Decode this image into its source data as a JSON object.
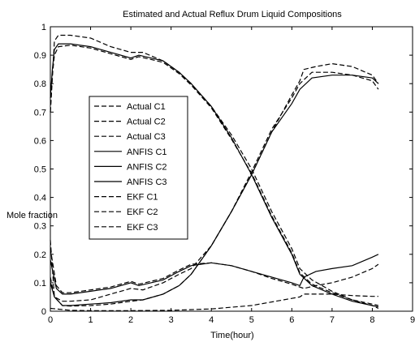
{
  "chart_data": {
    "type": "line",
    "title": "Estimated and Actual Reflux Drum Liquid Compositions",
    "xlabel": "Time(hour)",
    "ylabel": "Mole fraction",
    "xlim": [
      0,
      9
    ],
    "ylim": [
      0,
      1
    ],
    "xticks": [
      0,
      1,
      2,
      3,
      4,
      5,
      6,
      7,
      8,
      9
    ],
    "yticks": [
      0,
      0.1,
      0.2,
      0.3,
      0.4,
      0.5,
      0.6,
      0.7,
      0.8,
      0.9,
      1
    ],
    "grid": false,
    "legend_position": "center-left",
    "series": [
      {
        "name": "Actual C1",
        "dash": "6,3",
        "x": [
          0,
          0.1,
          0.2,
          0.5,
          1,
          1.5,
          2,
          2.3,
          2.8,
          3.2,
          3.5,
          4,
          4.5,
          5,
          5.5,
          6,
          6.2,
          6.5,
          7,
          7.5,
          8,
          8.15
        ],
        "y": [
          0.7,
          0.95,
          0.97,
          0.97,
          0.96,
          0.93,
          0.91,
          0.91,
          0.88,
          0.84,
          0.8,
          0.72,
          0.62,
          0.5,
          0.35,
          0.22,
          0.15,
          0.11,
          0.07,
          0.04,
          0.02,
          0.01
        ]
      },
      {
        "name": "Actual C2",
        "dash": "6,3",
        "x": [
          0,
          0.1,
          0.3,
          0.5,
          1,
          1.5,
          2,
          2.3,
          2.8,
          3.2,
          3.5,
          4,
          4.5,
          5,
          5.5,
          6,
          6.2,
          6.3,
          6.6,
          7,
          7.5,
          8,
          8.15
        ],
        "y": [
          0.25,
          0.05,
          0.035,
          0.035,
          0.04,
          0.06,
          0.08,
          0.075,
          0.1,
          0.13,
          0.15,
          0.23,
          0.35,
          0.48,
          0.63,
          0.76,
          0.81,
          0.85,
          0.86,
          0.87,
          0.86,
          0.83,
          0.8
        ]
      },
      {
        "name": "Actual C3",
        "dash": "6,3",
        "x": [
          0,
          0.5,
          1,
          2,
          3,
          4,
          5,
          6,
          6.2,
          6.3,
          6.6,
          7,
          7.5,
          8,
          8.15
        ],
        "y": [
          0.01,
          0.003,
          0.002,
          0.002,
          0.003,
          0.008,
          0.02,
          0.045,
          0.05,
          0.06,
          0.06,
          0.06,
          0.055,
          0.052,
          0.052
        ]
      },
      {
        "name": "ANFIS C1",
        "dash": "",
        "x": [
          0,
          0.05,
          0.1,
          0.2,
          0.5,
          1,
          1.5,
          2,
          2.2,
          2.8,
          3.2,
          3.5,
          4,
          4.5,
          5,
          5.5,
          6,
          6.2,
          6.5,
          7,
          7.5,
          8,
          8.15
        ],
        "y": [
          0.75,
          0.85,
          0.92,
          0.94,
          0.94,
          0.93,
          0.91,
          0.89,
          0.9,
          0.88,
          0.84,
          0.8,
          0.72,
          0.61,
          0.48,
          0.33,
          0.2,
          0.13,
          0.09,
          0.06,
          0.035,
          0.02,
          0.015
        ]
      },
      {
        "name": "ANFIS C2",
        "dash": "",
        "x": [
          0,
          0.1,
          0.3,
          0.5,
          1,
          1.5,
          2,
          2.3,
          2.8,
          3.2,
          3.5,
          4,
          4.5,
          5,
          5.5,
          6,
          6.2,
          6.5,
          7,
          7.5,
          8,
          8.15
        ],
        "y": [
          0.1,
          0.05,
          0.02,
          0.02,
          0.025,
          0.03,
          0.04,
          0.04,
          0.06,
          0.09,
          0.13,
          0.23,
          0.35,
          0.48,
          0.63,
          0.73,
          0.78,
          0.82,
          0.83,
          0.83,
          0.82,
          0.8
        ]
      },
      {
        "name": "ANFIS C3",
        "dash": "",
        "x": [
          0,
          0.15,
          0.3,
          0.5,
          1,
          1.5,
          2,
          2.2,
          2.8,
          3.2,
          3.5,
          4,
          4.5,
          5,
          5.5,
          6,
          6.2,
          6.3,
          6.6,
          7,
          7.5,
          8,
          8.15
        ],
        "y": [
          0.18,
          0.08,
          0.06,
          0.06,
          0.07,
          0.08,
          0.1,
          0.09,
          0.11,
          0.14,
          0.16,
          0.17,
          0.16,
          0.14,
          0.12,
          0.1,
          0.09,
          0.12,
          0.14,
          0.15,
          0.16,
          0.19,
          0.2
        ]
      },
      {
        "name": "EKF C1",
        "dash": "6,3",
        "x": [
          0,
          0.05,
          0.1,
          0.2,
          0.5,
          1,
          1.5,
          2,
          2.2,
          2.8,
          3.2,
          3.5,
          4,
          4.5,
          5,
          5.5,
          6,
          6.2,
          6.5,
          7,
          7.5,
          8,
          8.15
        ],
        "y": [
          0.7,
          0.83,
          0.9,
          0.93,
          0.935,
          0.925,
          0.905,
          0.885,
          0.895,
          0.875,
          0.835,
          0.795,
          0.715,
          0.605,
          0.485,
          0.335,
          0.205,
          0.135,
          0.095,
          0.065,
          0.04,
          0.025,
          0.02
        ]
      },
      {
        "name": "EKF C2",
        "dash": "6,3",
        "x": [
          0,
          0.1,
          0.3,
          0.5,
          1,
          1.5,
          2,
          2.3,
          2.8,
          3.2,
          3.5,
          4,
          4.5,
          5,
          5.5,
          6,
          6.2,
          6.5,
          7,
          7.5,
          8,
          8.15
        ],
        "y": [
          0.12,
          0.05,
          0.02,
          0.018,
          0.02,
          0.025,
          0.035,
          0.04,
          0.06,
          0.09,
          0.13,
          0.23,
          0.35,
          0.49,
          0.64,
          0.75,
          0.8,
          0.84,
          0.84,
          0.83,
          0.81,
          0.78
        ]
      },
      {
        "name": "EKF C3",
        "dash": "6,3",
        "x": [
          0,
          0.15,
          0.3,
          0.5,
          1,
          1.5,
          2,
          2.2,
          2.8,
          3.2,
          3.5,
          4,
          4.5,
          5,
          5.5,
          6,
          6.2,
          6.3,
          6.6,
          7,
          7.5,
          8,
          8.15
        ],
        "y": [
          0.22,
          0.09,
          0.065,
          0.065,
          0.075,
          0.085,
          0.105,
          0.095,
          0.115,
          0.145,
          0.165,
          0.17,
          0.16,
          0.14,
          0.115,
          0.095,
          0.085,
          0.08,
          0.09,
          0.1,
          0.12,
          0.15,
          0.165
        ]
      }
    ]
  }
}
